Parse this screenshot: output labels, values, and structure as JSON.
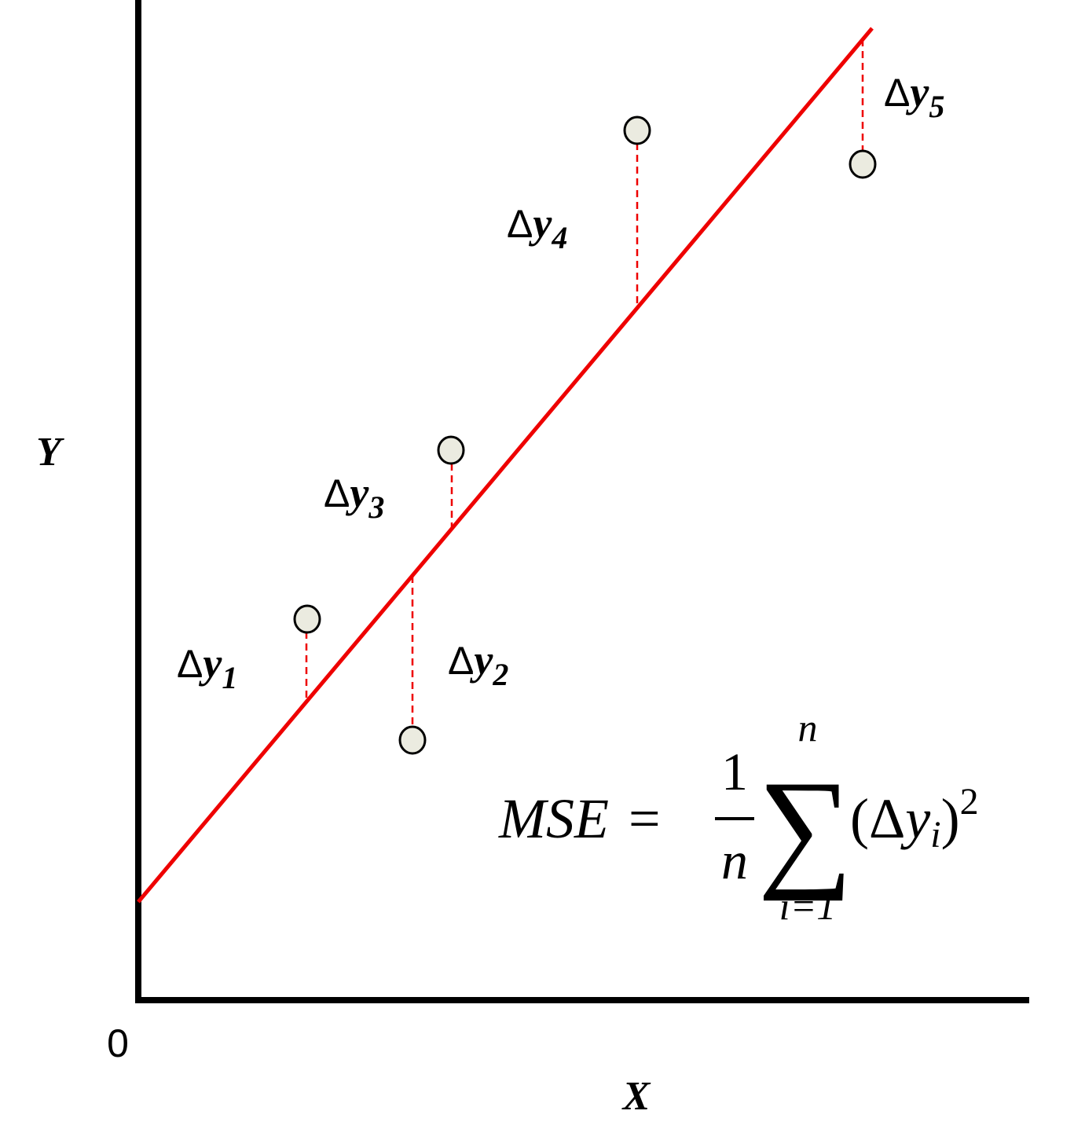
{
  "axes": {
    "y_label": "Y",
    "x_label": "X",
    "origin": "0"
  },
  "residual_labels": [
    {
      "delta": "Δ",
      "var": "y",
      "index": "1"
    },
    {
      "delta": "Δ",
      "var": "y",
      "index": "2"
    },
    {
      "delta": "Δ",
      "var": "y",
      "index": "3"
    },
    {
      "delta": "Δ",
      "var": "y",
      "index": "4"
    },
    {
      "delta": "Δ",
      "var": "y",
      "index": "5"
    }
  ],
  "formula": {
    "lhs": "MSE",
    "equals": "=",
    "numerator": "1",
    "denominator": "n",
    "sum": "∑",
    "upper": "n",
    "lower": "i=1",
    "open": "(Δ",
    "var": "y",
    "index": "i",
    "close": ")",
    "power": "2"
  }
}
